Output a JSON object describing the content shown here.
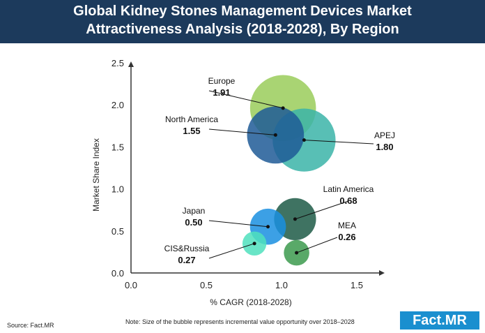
{
  "header": {
    "title_line1": "Global Kidney Stones Management Devices Market",
    "title_line2": "Attractiveness Analysis (2018-2028), By Region"
  },
  "chart_data": {
    "type": "bubble",
    "xlabel": "% CAGR (2018-2028)",
    "ylabel": "Market Share Index",
    "xlim": [
      0.0,
      1.6
    ],
    "ylim": [
      0.0,
      2.5
    ],
    "xticks": [
      "0.0",
      "0.5",
      "1.0",
      "1.5"
    ],
    "yticks": [
      "0.0",
      "0.5",
      "1.0",
      "1.5",
      "2.0",
      "2.5"
    ],
    "grid": false,
    "points": [
      {
        "name": "Europe",
        "label": "1.91",
        "x": 1.01,
        "y": 1.96,
        "size": 22,
        "color": "#9acd5a"
      },
      {
        "name": "North America",
        "label": "1.55",
        "x": 0.96,
        "y": 1.64,
        "size": 19,
        "color": "#1f5a96"
      },
      {
        "name": "APEJ",
        "label": "1.80",
        "x": 1.15,
        "y": 1.58,
        "size": 21,
        "color": "#3bb4a8"
      },
      {
        "name": "Latin America",
        "label": "0.68",
        "x": 1.09,
        "y": 0.64,
        "size": 14,
        "color": "#1d5a46"
      },
      {
        "name": "Japan",
        "label": "0.50",
        "x": 0.91,
        "y": 0.55,
        "size": 12,
        "color": "#1a8fe0"
      },
      {
        "name": "MEA",
        "label": "0.26",
        "x": 1.1,
        "y": 0.24,
        "size": 8.5,
        "color": "#3c9a4e"
      },
      {
        "name": "CIS&Russia",
        "label": "0.27",
        "x": 0.82,
        "y": 0.35,
        "size": 8,
        "color": "#4fe0bd"
      }
    ]
  },
  "footer": {
    "source": "Source: Fact.MR",
    "note": "Note: Size of the bubble represents incremental value opportunity over 2018–2028",
    "logo_left": "Fact",
    "logo_right": "MR"
  }
}
